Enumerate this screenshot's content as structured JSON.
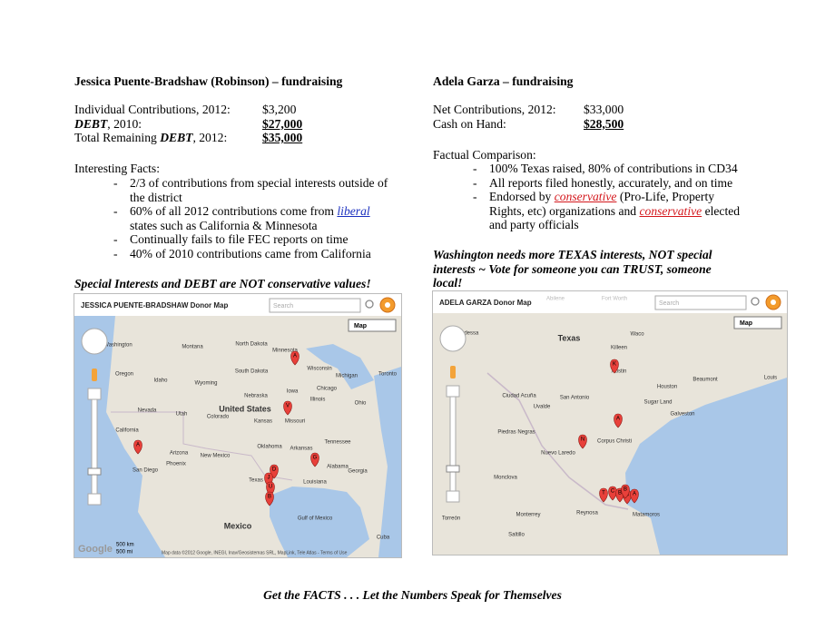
{
  "left": {
    "title": "Jessica Puente-Bradshaw (Robinson) – fundraising",
    "finances": [
      {
        "label": [
          {
            "text": "Individual Contributions, 2012:"
          }
        ],
        "amount": "$3,200",
        "strong": false
      },
      {
        "label": [
          {
            "text": "DEBT",
            "em": true
          },
          {
            "text": ", 2010:"
          }
        ],
        "amount": "$27,000",
        "strong": true
      },
      {
        "label": [
          {
            "text": "Total Remaining "
          },
          {
            "text": "DEBT",
            "em": true
          },
          {
            "text": ", 2012:"
          }
        ],
        "amount": "$35,000",
        "strong": true
      }
    ],
    "facts_heading": "Interesting Facts:",
    "facts": [
      [
        {
          "text": "2/3 of contributions from special interests outside of the district"
        }
      ],
      [
        {
          "text": "60% of all 2012 contributions come from "
        },
        {
          "text": "liberal",
          "link": "blue"
        },
        {
          "text": " states such as California & Minnesota"
        }
      ],
      [
        {
          "text": "Continually fails to file FEC reports on time"
        }
      ],
      [
        {
          "text": "40% of 2010 contributions came from California"
        }
      ]
    ],
    "slogan": "Special Interests and DEBT are NOT conservative values!",
    "map": {
      "title": "JESSICA PUENTE-BRADSHAW Donor Map",
      "search": "Search",
      "button": "Map",
      "labels": [
        "Washington",
        "Montana",
        "North Dakota",
        "South Dakota",
        "Wyoming",
        "Nebraska",
        "Iowa",
        "Minnesota",
        "Wisconsin",
        "Michigan",
        "Chicago",
        "Illinois",
        "Ohio",
        "Kansas",
        "Missouri",
        "Colorado",
        "Utah",
        "Nevada",
        "California",
        "Oregon",
        "Idaho",
        "Arizona",
        "New Mexico",
        "Phoenix",
        "San Diego",
        "Oklahoma",
        "Arkansas",
        "Tennessee",
        "Texas",
        "Louisiana",
        "Alabama",
        "Georgia",
        "Gulf of Mexico",
        "Cuba",
        "Toronto",
        "United States",
        "Mexico"
      ],
      "markers": [
        "A",
        "V",
        "G",
        "D",
        "J",
        "U",
        "B",
        "A"
      ],
      "scale": [
        "500 km",
        "500 mi"
      ],
      "brand": "Google",
      "credits": "Map data ©2012 Google, INEGI, Inav/Geosistemas SRL, MapLink, Tele Atlas - Terms of Use"
    }
  },
  "right": {
    "title": "Adela Garza – fundraising",
    "finances": [
      {
        "label": [
          {
            "text": "Net Contributions, 2012:"
          }
        ],
        "amount": "$33,000",
        "strong": false
      },
      {
        "label": [
          {
            "text": "Cash on Hand:"
          }
        ],
        "amount": "$28,500",
        "strong": true
      }
    ],
    "facts_heading": "Factual Comparison:",
    "facts": [
      [
        {
          "text": "100% Texas raised, 80% of contributions in CD34"
        }
      ],
      [
        {
          "text": "All reports filed honestly, accurately, and on time"
        }
      ],
      [
        {
          "text": "Endorsed by "
        },
        {
          "text": "conservative",
          "link": "red"
        },
        {
          "text": " (Pro-Life, Property Rights, etc) organizations and "
        },
        {
          "text": "conservative",
          "link": "red"
        },
        {
          "text": " elected and party officials"
        }
      ]
    ],
    "slogan": "Washington needs more TEXAS interests, NOT special interests ~ Vote for someone you can TRUST, someone local!",
    "map": {
      "title": "ADELA GARZA Donor Map",
      "search": "Search",
      "button": "Map",
      "labels": [
        "Abilene",
        "Fort Worth",
        "Odessa",
        "Texas",
        "Waco",
        "Killeen",
        "Austin",
        "Beaumont",
        "Louis",
        "Houston",
        "Sugar Land",
        "Galveston",
        "San Antonio",
        "Uvalde",
        "Ciudad Acuña",
        "Piedras Negras",
        "Nuevo Laredo",
        "Corpus Christi",
        "Monclova",
        "Monterrey",
        "Reynosa",
        "Matamoros",
        "Saltillo",
        "Torreón"
      ],
      "markers": [
        "K",
        "A",
        "N",
        "T",
        "C",
        "B",
        "S",
        "A",
        "B"
      ]
    }
  },
  "footer": "Get the FACTS . . . Let the Numbers Speak for Themselves"
}
